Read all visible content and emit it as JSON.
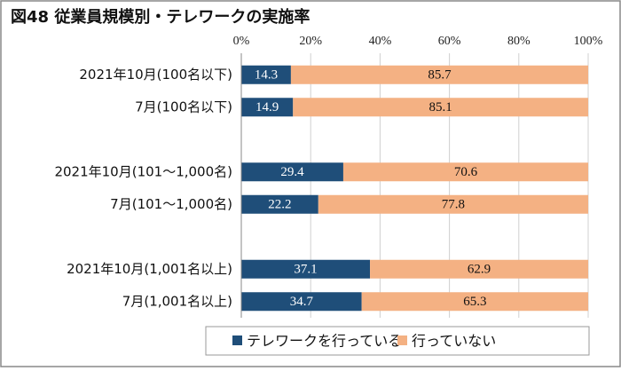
{
  "chart_data": {
    "type": "stacked_bar_horizontal",
    "title": "図48 従業員規模別・テレワークの実施率",
    "categories": [
      "2021年10月(100名以下)",
      "7月(100名以下)",
      null,
      "2021年10月(101～1,000名)",
      "7月(101～1,000名)",
      null,
      "2021年10月(1,001名以上)",
      "7月(1,001名以上)"
    ],
    "series": [
      {
        "name": "テレワークを行っている",
        "color": "#1f4e79",
        "values": [
          14.3,
          14.9,
          null,
          29.4,
          22.2,
          null,
          37.1,
          34.7
        ]
      },
      {
        "name": "行っていない",
        "color": "#f4b183",
        "values": [
          85.7,
          85.1,
          null,
          70.6,
          77.8,
          null,
          62.9,
          65.3
        ]
      }
    ],
    "xlim": [
      0,
      100
    ],
    "xticks": [
      {
        "value": 0,
        "label": "0%"
      },
      {
        "value": 20,
        "label": "20%"
      },
      {
        "value": 40,
        "label": "40%"
      },
      {
        "value": 60,
        "label": "60%"
      },
      {
        "value": 80,
        "label": "80%"
      },
      {
        "value": 100,
        "label": "100%"
      }
    ],
    "grid": true,
    "legend": "bottom"
  }
}
